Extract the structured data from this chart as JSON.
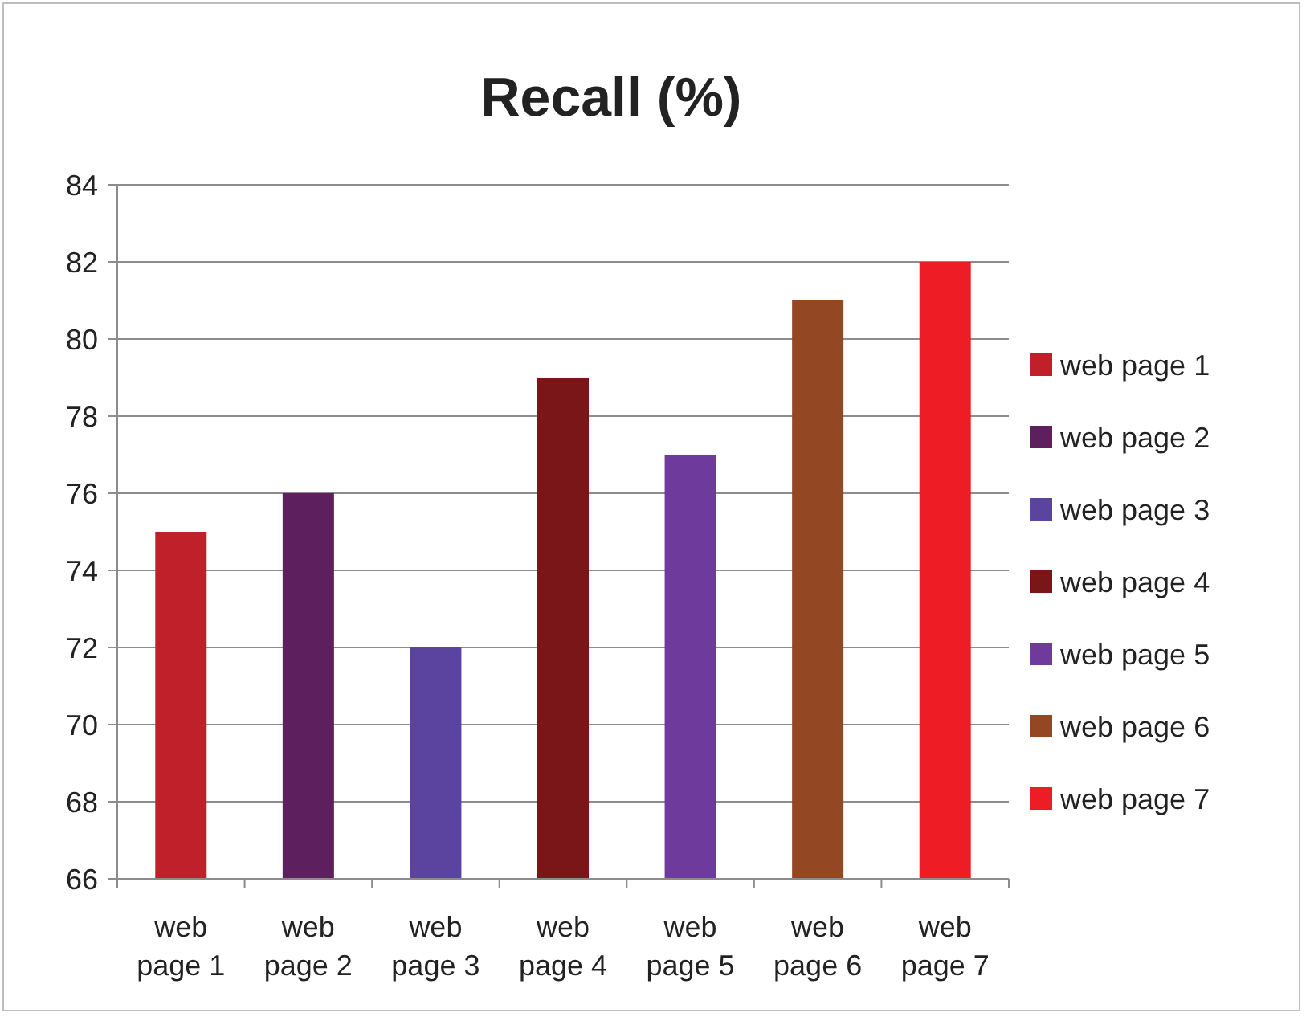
{
  "chart_data": {
    "type": "bar",
    "title": "Recall (%)",
    "categories": [
      "web page 1",
      "web page 2",
      "web page 3",
      "web page 4",
      "web page 5",
      "web page 6",
      "web page 7"
    ],
    "series": [
      {
        "name": "web page 1",
        "color": "#c0202a",
        "values": [
          75,
          null,
          null,
          null,
          null,
          null,
          null
        ]
      },
      {
        "name": "web page 2",
        "color": "#5e1f5f",
        "values": [
          null,
          76,
          null,
          null,
          null,
          null,
          null
        ]
      },
      {
        "name": "web page 3",
        "color": "#5b43a0",
        "values": [
          null,
          null,
          72,
          null,
          null,
          null,
          null
        ]
      },
      {
        "name": "web page 4",
        "color": "#7a1518",
        "values": [
          null,
          null,
          null,
          79,
          null,
          null,
          null
        ]
      },
      {
        "name": "web page 5",
        "color": "#6e3a9c",
        "values": [
          null,
          null,
          null,
          null,
          77,
          null,
          null
        ]
      },
      {
        "name": "web page 6",
        "color": "#934823",
        "values": [
          null,
          null,
          null,
          null,
          null,
          81,
          null
        ]
      },
      {
        "name": "web page 7",
        "color": "#ee1c25",
        "values": [
          null,
          null,
          null,
          null,
          null,
          null,
          82
        ]
      }
    ],
    "ylim": [
      66,
      84
    ],
    "yticks": [
      66,
      68,
      70,
      72,
      74,
      76,
      78,
      80,
      82,
      84
    ],
    "grid": "y",
    "legend": "right"
  }
}
